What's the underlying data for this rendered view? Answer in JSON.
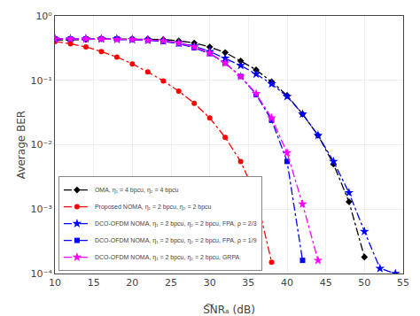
{
  "chart_data": {
    "type": "line",
    "xlabel": "S͠NRₐ (dB)",
    "ylabel": "Average BER",
    "log": "y",
    "grid": true,
    "legend": "lower left",
    "line_style": "dashdot",
    "xlim": [
      10,
      55
    ],
    "ylim": [
      0.0001,
      1
    ],
    "xticks": [
      10,
      15,
      20,
      25,
      30,
      35,
      40,
      45,
      50,
      55
    ],
    "yticks": [
      {
        "value": 0.0001,
        "label": "10⁻⁴"
      },
      {
        "value": 0.001,
        "label": "10⁻³"
      },
      {
        "value": 0.01,
        "label": "10⁻²"
      },
      {
        "value": 0.1,
        "label": "10⁻¹"
      },
      {
        "value": 1,
        "label": "10⁰"
      }
    ],
    "series": [
      {
        "name": "OMA, η₁ = 4 bpcu, η₂ = 4 bpcu",
        "color": "#000000",
        "marker": "diamond",
        "x": [
          10,
          12,
          14,
          16,
          18,
          20,
          22,
          24,
          26,
          28,
          30,
          32,
          34,
          36,
          38,
          40,
          42,
          44,
          46,
          48,
          50
        ],
        "values": [
          0.42,
          0.42,
          0.43,
          0.44,
          0.44,
          0.44,
          0.44,
          0.43,
          0.41,
          0.38,
          0.33,
          0.27,
          0.2,
          0.145,
          0.095,
          0.058,
          0.03,
          0.014,
          0.005,
          0.0013,
          0.00018
        ]
      },
      {
        "name": "Proposed NOMA, η₁ = 2 bpcu, η₂ = 2 bpcu",
        "color": "#ff0000",
        "marker": "circle",
        "x": [
          10,
          12,
          14,
          16,
          18,
          20,
          22,
          24,
          26,
          28,
          30,
          32,
          34,
          36,
          38
        ],
        "values": [
          0.4,
          0.37,
          0.33,
          0.28,
          0.23,
          0.18,
          0.135,
          0.098,
          0.068,
          0.044,
          0.026,
          0.013,
          0.0055,
          0.0016,
          0.00015
        ]
      },
      {
        "name": "DCO-OFDM NOMA, η₁ = 2 bpcu, η₂ = 2 bpcu, FPA, ρ = 2/3",
        "color": "#0000ff",
        "marker": "star",
        "x": [
          10,
          12,
          14,
          16,
          18,
          20,
          22,
          24,
          26,
          28,
          30,
          32,
          34,
          36,
          38,
          40,
          42,
          44,
          46,
          48,
          50,
          52,
          54
        ],
        "values": [
          0.44,
          0.44,
          0.44,
          0.44,
          0.44,
          0.43,
          0.42,
          0.41,
          0.38,
          0.34,
          0.28,
          0.22,
          0.17,
          0.125,
          0.088,
          0.056,
          0.03,
          0.014,
          0.0055,
          0.0018,
          0.00045,
          0.00012,
          0.0001
        ]
      },
      {
        "name": "DCO-OFDM NOMA, η₁ = 2 bpcu, η₂ = 2 bpcu, FPA, ρ = 1/9",
        "color": "#0000ff",
        "marker": "square",
        "x": [
          10,
          12,
          14,
          16,
          18,
          20,
          22,
          24,
          26,
          28,
          30,
          32,
          34,
          36,
          38,
          40,
          42
        ],
        "values": [
          0.44,
          0.44,
          0.44,
          0.44,
          0.44,
          0.43,
          0.42,
          0.4,
          0.37,
          0.32,
          0.26,
          0.185,
          0.115,
          0.06,
          0.024,
          0.0055,
          0.00016
        ]
      },
      {
        "name": "DCO-OFDM NOMA, η₁ = 2 bpcu, η₂ = 2 bpcu, GRPA",
        "color": "#ff00ff",
        "marker": "star",
        "x": [
          10,
          12,
          14,
          16,
          18,
          20,
          22,
          24,
          26,
          28,
          30,
          32,
          34,
          36,
          38,
          40,
          42,
          44
        ],
        "values": [
          0.44,
          0.44,
          0.44,
          0.44,
          0.43,
          0.43,
          0.42,
          0.41,
          0.38,
          0.33,
          0.265,
          0.185,
          0.115,
          0.062,
          0.026,
          0.0075,
          0.0012,
          0.00016
        ]
      }
    ]
  }
}
